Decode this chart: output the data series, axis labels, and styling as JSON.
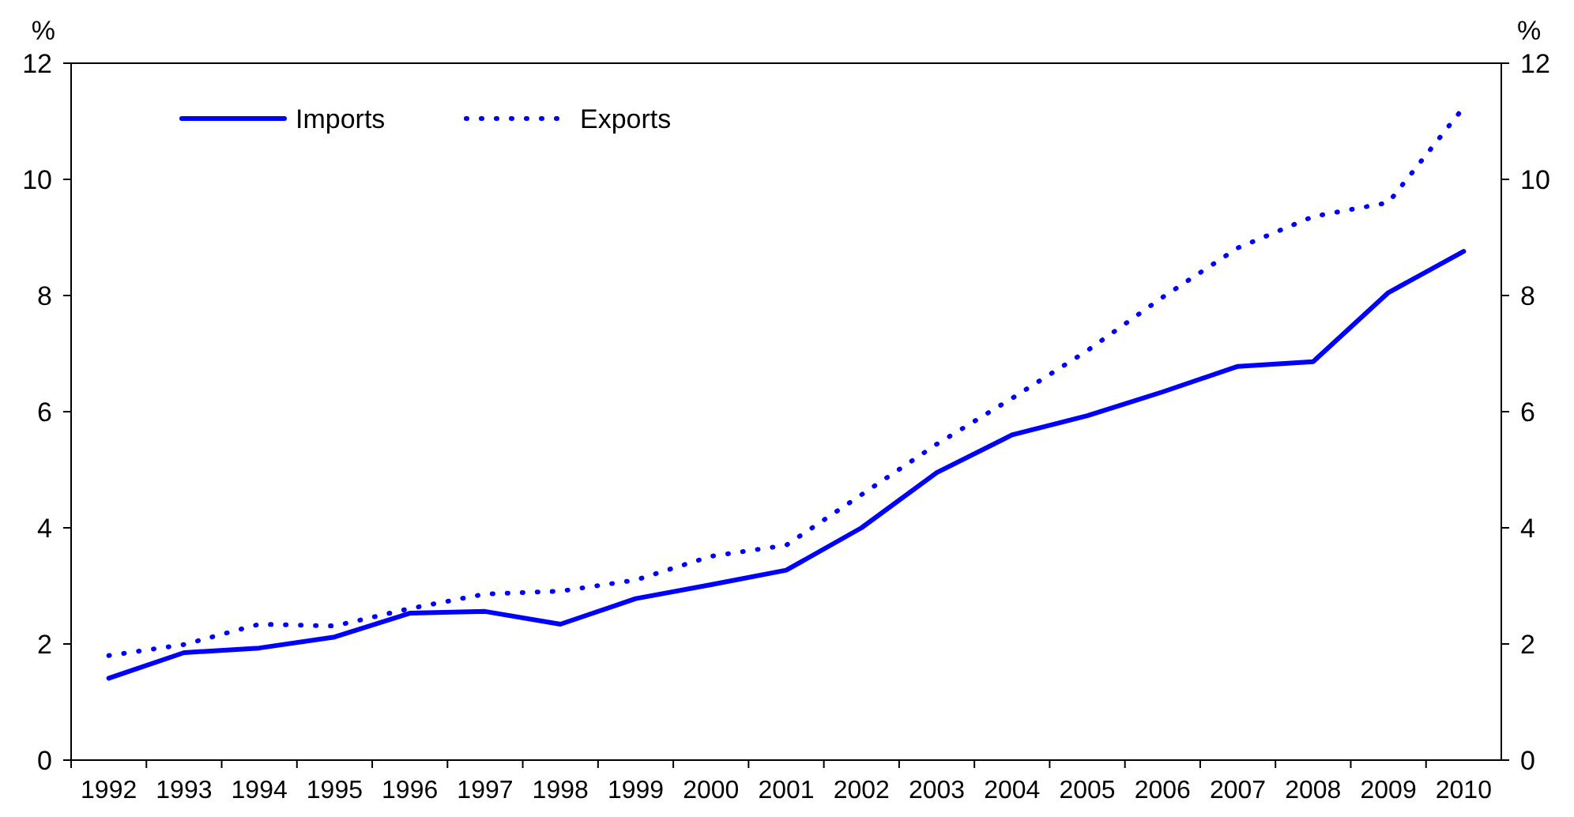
{
  "chart_data": {
    "type": "line",
    "ylabel": "%",
    "y2label": "%",
    "categories": [
      "1992",
      "1993",
      "1994",
      "1995",
      "1996",
      "1997",
      "1998",
      "1999",
      "2000",
      "2001",
      "2002",
      "2003",
      "2004",
      "2005",
      "2006",
      "2007",
      "2008",
      "2009",
      "2010"
    ],
    "series": [
      {
        "name": "Imports",
        "color": "#0000ff",
        "line_style": "solid",
        "values": [
          1.41,
          1.85,
          1.93,
          2.12,
          2.53,
          2.56,
          2.34,
          2.78,
          3.02,
          3.27,
          4.0,
          4.95,
          5.6,
          5.93,
          6.34,
          6.78,
          6.86,
          8.05,
          8.76
        ]
      },
      {
        "name": "Exports",
        "color": "#0000ff",
        "line_style": "dotted",
        "values": [
          1.8,
          1.99,
          2.34,
          2.31,
          2.61,
          2.86,
          2.91,
          3.1,
          3.51,
          3.7,
          4.57,
          5.44,
          6.23,
          7.05,
          7.97,
          8.82,
          9.36,
          9.6,
          11.24
        ]
      }
    ],
    "ylim": [
      0,
      12
    ],
    "yticks": [
      0,
      2,
      4,
      6,
      8,
      10,
      12
    ],
    "y2lim": [
      0,
      12
    ],
    "y2ticks": [
      0,
      2,
      4,
      6,
      8,
      10,
      12
    ],
    "grid": false,
    "legend": "top left"
  }
}
